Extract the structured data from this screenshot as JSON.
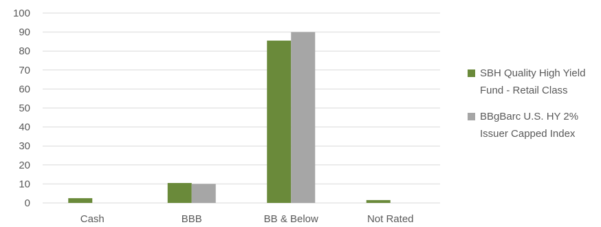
{
  "chart_data": {
    "type": "bar",
    "categories": [
      "Cash",
      "BBB",
      "BB & Below",
      "Not Rated"
    ],
    "series": [
      {
        "name": "SBH Quality High Yield Fund - Retail Class",
        "values": [
          2.5,
          10.5,
          85.5,
          1.5
        ],
        "color": "#6a8a3a"
      },
      {
        "name": "BBgBarc U.S. HY 2% Issuer Capped Index",
        "values": [
          0,
          10,
          90,
          0
        ],
        "color": "#a6a6a6"
      }
    ],
    "ylim": [
      0,
      100
    ],
    "yticks": [
      0,
      10,
      20,
      30,
      40,
      50,
      60,
      70,
      80,
      90,
      100
    ],
    "grid": true,
    "legend_position": "right",
    "gridline_color": "#d9d9d9"
  }
}
